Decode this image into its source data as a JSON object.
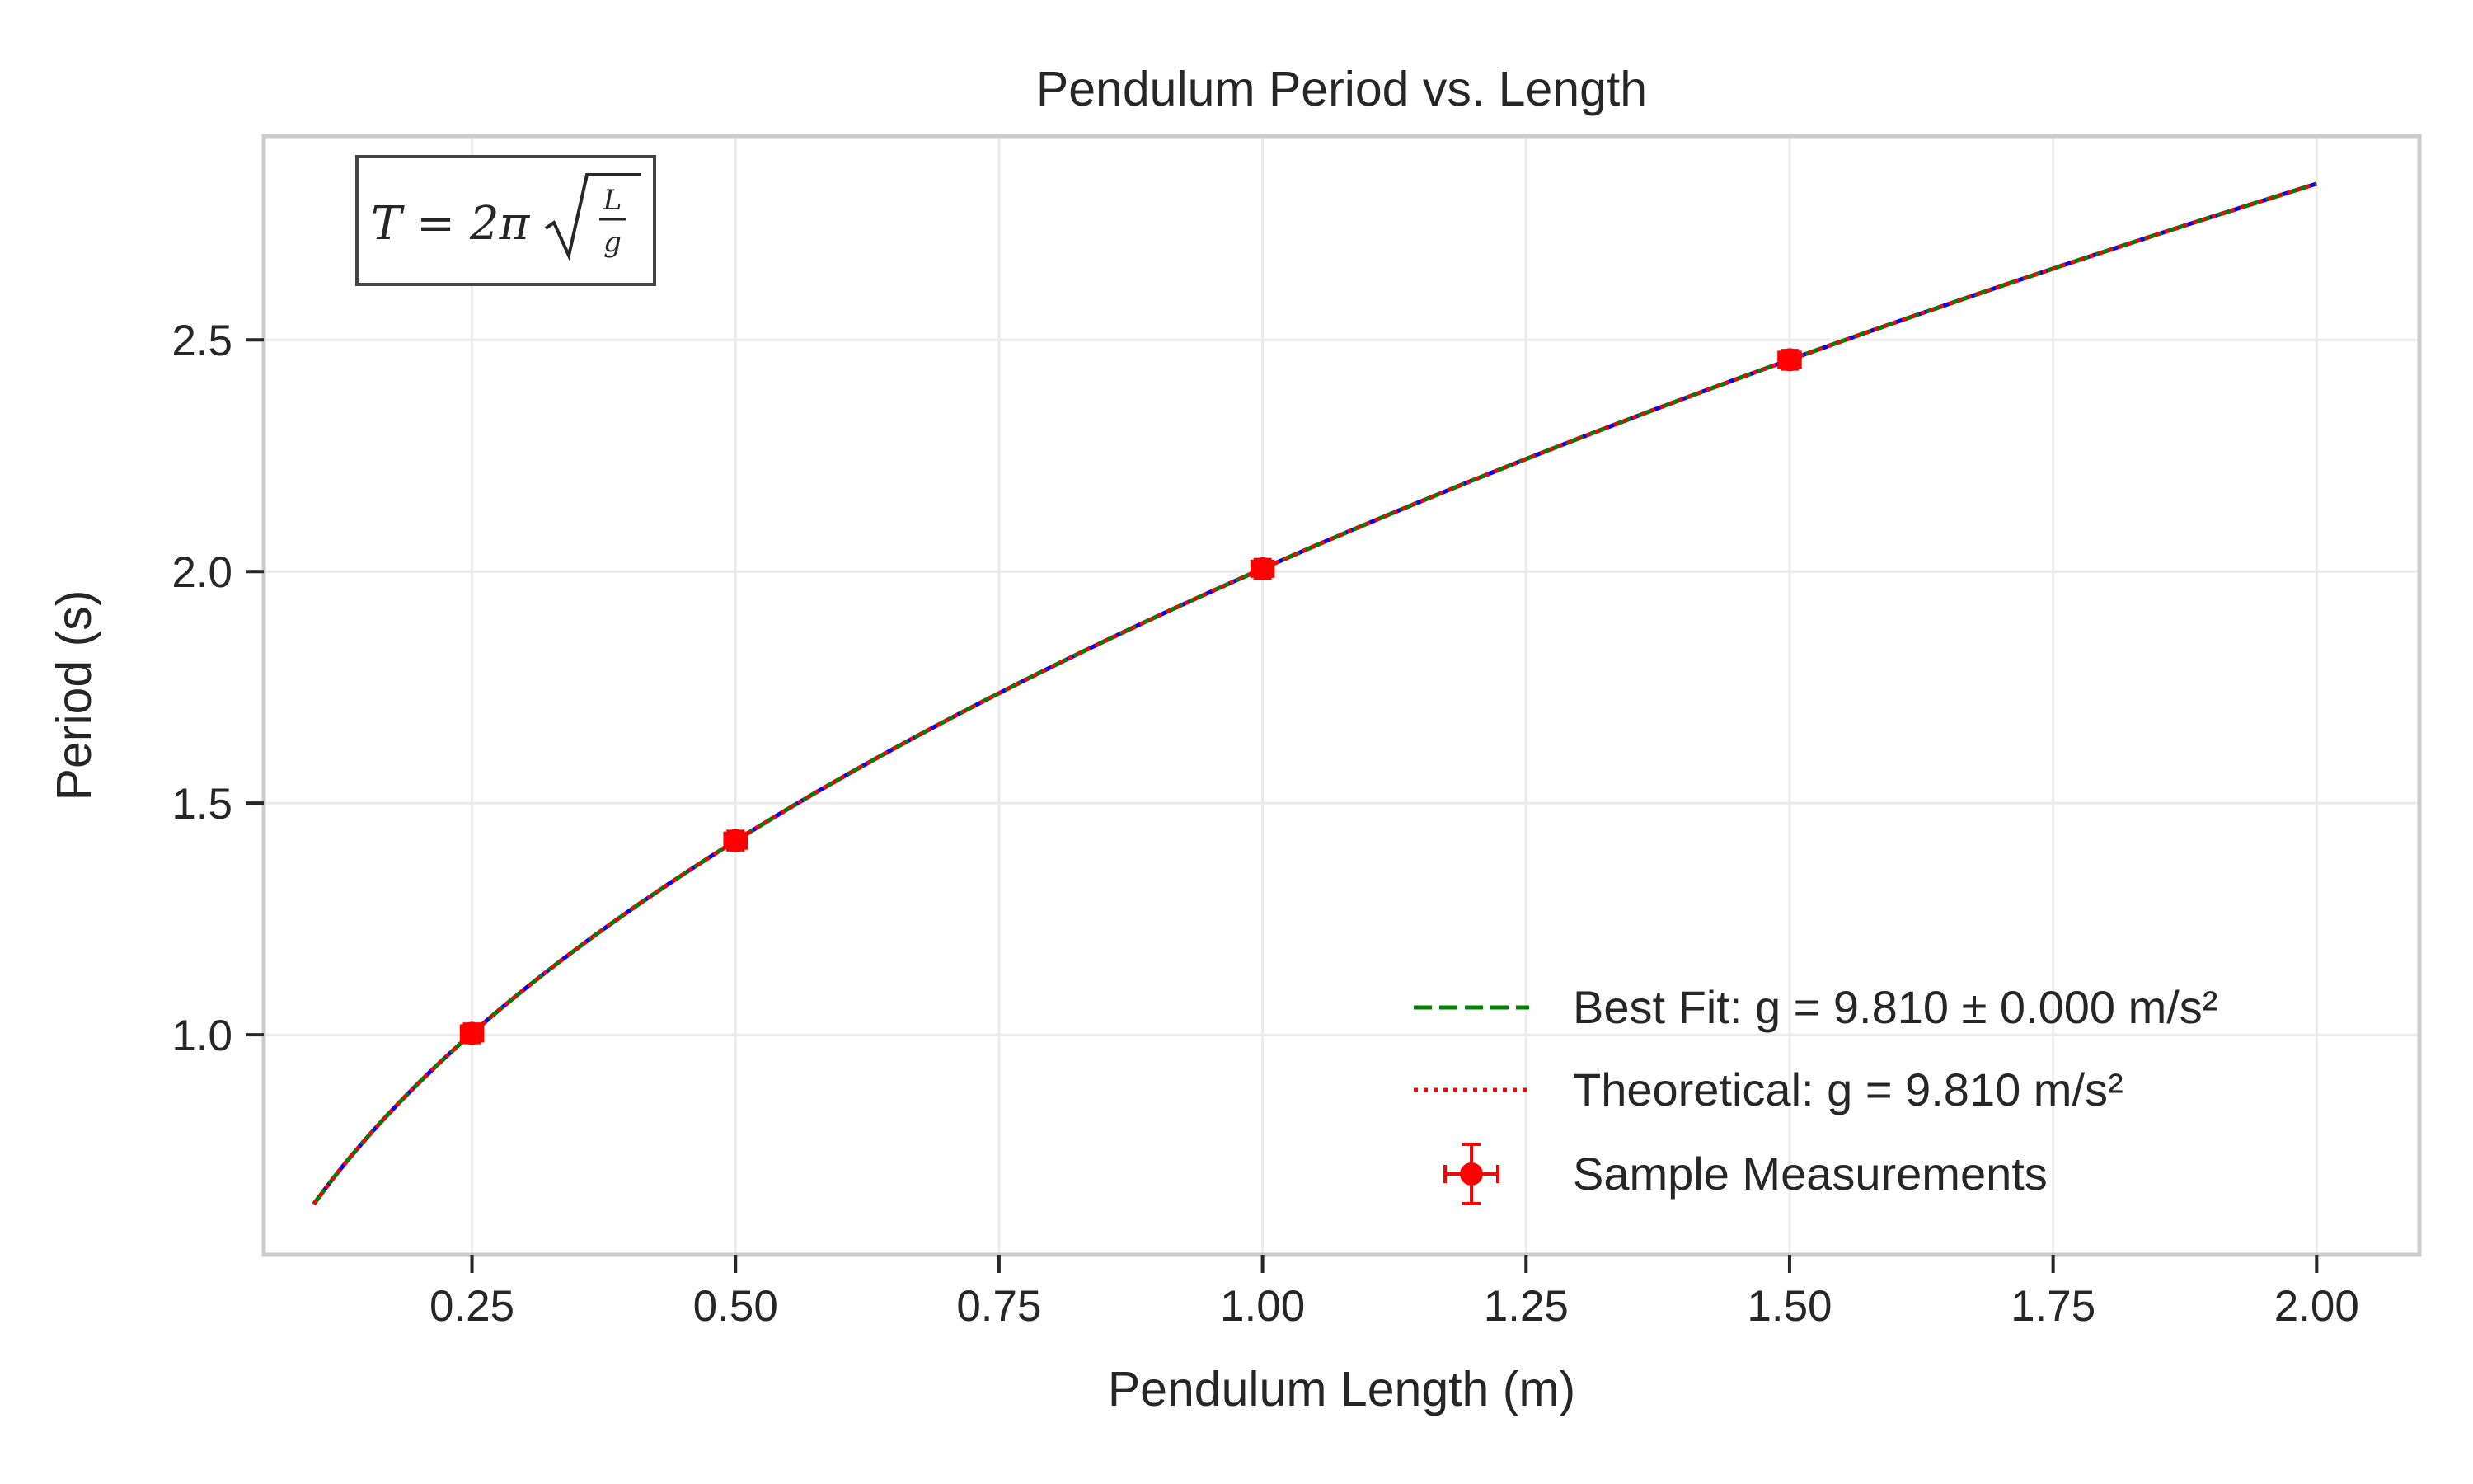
{
  "chart_data": {
    "type": "line",
    "title": "Pendulum Period vs. Length",
    "xlabel": "Pendulum Length (m)",
    "ylabel": "Period (s)",
    "xlim": [
      0.0525,
      2.0975
    ],
    "ylim": [
      0.525,
      2.94
    ],
    "grid": true,
    "x_ticks": [
      0.25,
      0.5,
      0.75,
      1.0,
      1.25,
      1.5,
      1.75,
      2.0
    ],
    "x_tick_labels": [
      "0.25",
      "0.50",
      "0.75",
      "1.00",
      "1.25",
      "1.50",
      "1.75",
      "2.00"
    ],
    "y_ticks": [
      1.0,
      1.5,
      2.0,
      2.5
    ],
    "y_tick_labels": [
      "1.0",
      "1.5",
      "2.0",
      "2.5"
    ],
    "annotation": {
      "formula_lhs": "T = 2π",
      "formula_num": "L",
      "formula_den": "g"
    },
    "legend_position": "lower right",
    "gravity": 9.81,
    "curve_x_range": [
      0.1,
      2.0
    ],
    "series": [
      {
        "name": "",
        "kind": "line",
        "style": "solid",
        "color": "#0000ff",
        "x": [
          0.1,
          2.0
        ],
        "g": 9.81
      },
      {
        "name": "Best Fit: g = 9.810 ± 0.000 m/s²",
        "kind": "line",
        "style": "dashed",
        "color": "#008000",
        "x": [
          0.1,
          2.0
        ],
        "g": 9.81
      },
      {
        "name": "Theoretical: g = 9.810 m/s²",
        "kind": "line",
        "style": "dotted",
        "color": "#ff0000",
        "x": [
          0.1,
          2.0
        ],
        "g": 9.81
      },
      {
        "name": "Sample Measurements",
        "kind": "errorbar",
        "color": "#ff0000",
        "x": [
          0.25,
          0.5,
          1.0,
          1.5
        ],
        "y": [
          1.003,
          1.419,
          2.006,
          2.457
        ],
        "xerr": 0.01,
        "yerr": 0.02
      }
    ]
  }
}
